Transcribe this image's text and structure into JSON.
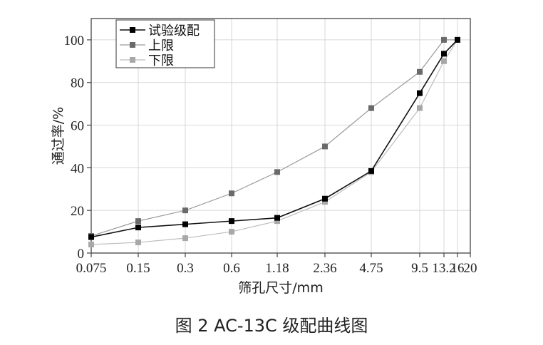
{
  "caption": "图 2   AC-13C 级配曲线图",
  "chart_data": {
    "type": "line",
    "xlabel": "筛孔尺寸/mm",
    "ylabel": "通过率/%",
    "x_ticks": [
      "0.075",
      "0.15",
      "0.3",
      "0.6",
      "1.18",
      "2.36",
      "4.75",
      "9.5",
      "13.2",
      "16",
      "20"
    ],
    "y_ticks": [
      0,
      20,
      40,
      60,
      80,
      100
    ],
    "ylim": [
      0,
      110
    ],
    "grid": true,
    "legend_position": "top-left",
    "x": [
      0.075,
      0.15,
      0.3,
      0.6,
      1.18,
      2.36,
      4.75,
      9.5,
      13.2,
      16
    ],
    "series": [
      {
        "name": "试验级配",
        "values": [
          7.5,
          12,
          13.5,
          15,
          16.5,
          25.5,
          38.5,
          75,
          93.5,
          100
        ],
        "color": "#111111",
        "marker_color": "#000000"
      },
      {
        "name": "上限",
        "values": [
          8,
          15,
          20,
          28,
          38,
          50,
          68,
          85,
          100,
          100
        ],
        "color": "#9a9a9a",
        "marker_color": "#6a6a6a"
      },
      {
        "name": "下限",
        "values": [
          4,
          5,
          7,
          10,
          15,
          24,
          38,
          68,
          90,
          100
        ],
        "color": "#bdbdbd",
        "marker_color": "#a8a8a8"
      }
    ]
  }
}
